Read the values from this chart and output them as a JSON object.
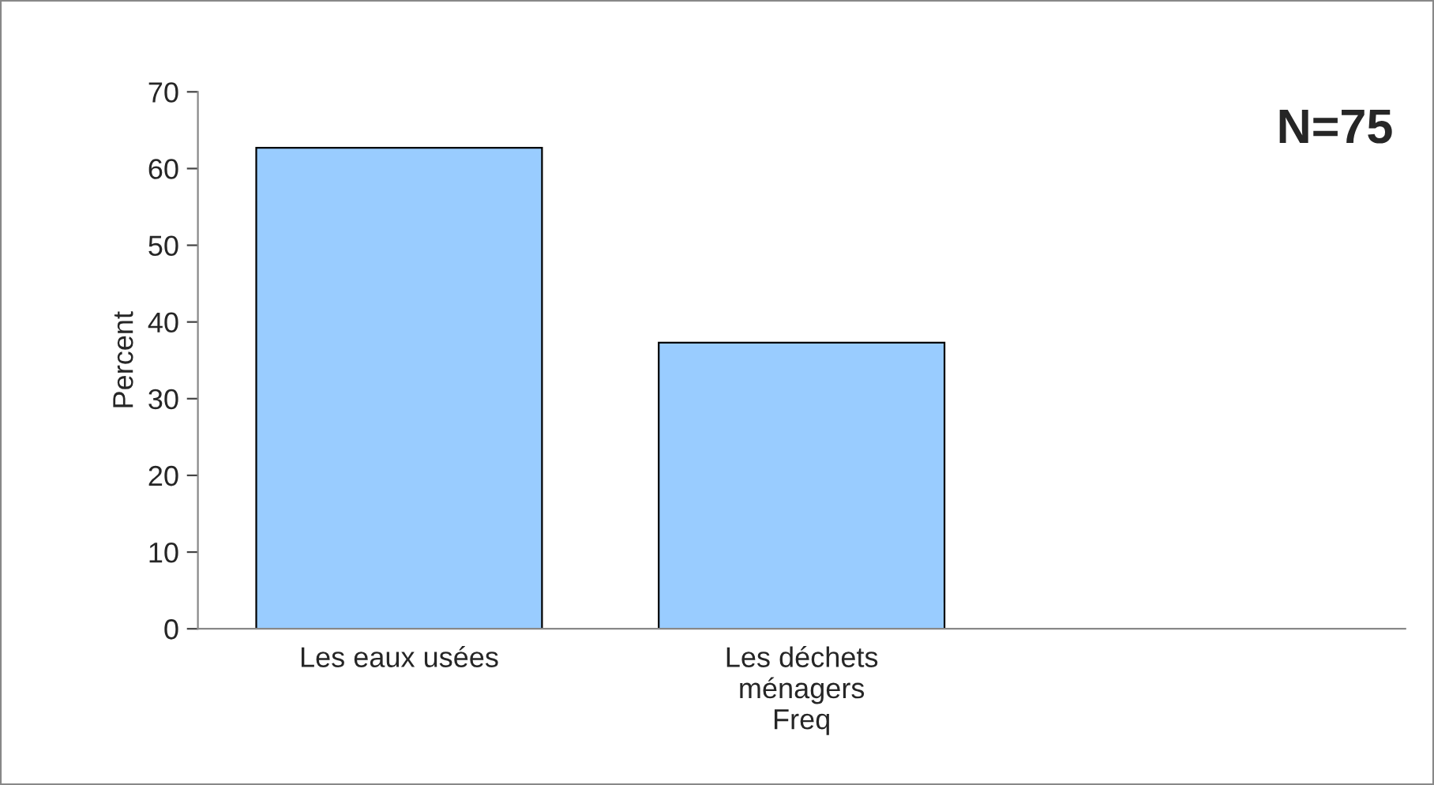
{
  "chart_data": {
    "type": "bar",
    "categories": [
      "Les eaux usées",
      "Les déchets\nménagers",
      null
    ],
    "values": [
      62.7,
      37.3,
      null
    ],
    "color": "#99ccff",
    "xlabel": "Freq",
    "ylabel": "Percent",
    "ylim": [
      0,
      70
    ],
    "yticks": [
      0,
      10,
      20,
      30,
      40,
      50,
      60,
      70
    ],
    "annotations": [
      "N=75"
    ],
    "grid": false,
    "legend": false
  }
}
